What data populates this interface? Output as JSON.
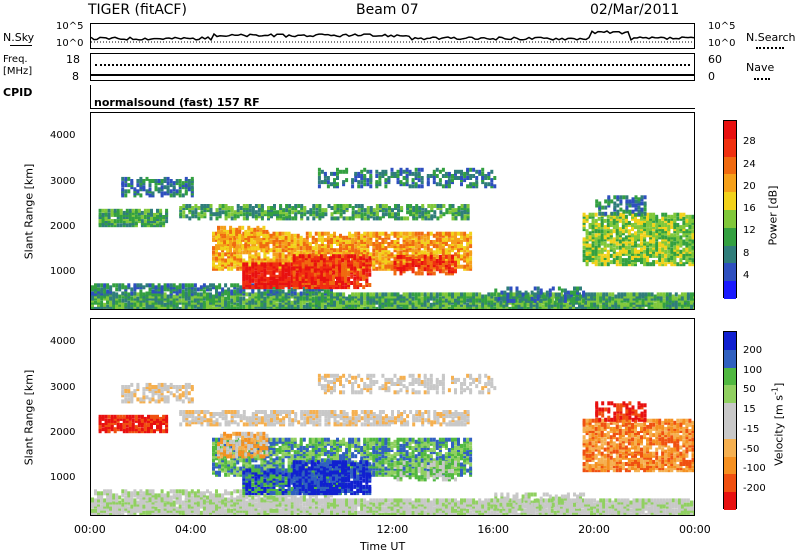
{
  "header": {
    "radar": "TIGER (fitACF)",
    "beam": "Beam 07",
    "date": "02/Mar/2011"
  },
  "summary": {
    "nsky_label": "N.Sky",
    "nsearch_label": "N.Search",
    "freq_label": "Freq.",
    "freq_unit": "[MHz]",
    "nave_label": "Nave",
    "cpid_label": "CPID",
    "cpid_text": "normalsound (fast) 157 RF",
    "noise_ticks_left": [
      "10^5",
      "10^0"
    ],
    "noise_ticks_right": [
      "10^5",
      "10^0"
    ],
    "freq_ticks": [
      "18",
      "8"
    ],
    "nave_ticks": [
      "60",
      "0"
    ]
  },
  "colors": {
    "power": [
      "#1a1aff",
      "#2e4fbf",
      "#2f7d7a",
      "#33a040",
      "#80c83a",
      "#f2d21b",
      "#f5a01a",
      "#f06a10",
      "#f03010",
      "#e81010"
    ],
    "velocity": [
      "#e81010",
      "#f05010",
      "#f59020",
      "#f5b050",
      "#c8c8c8",
      "#c8c8c8",
      "#90d060",
      "#50b840",
      "#3060c0",
      "#1020d0"
    ]
  },
  "chart_data": [
    {
      "type": "heatmap",
      "name": "Power",
      "ylabel": "Slant Range [km]",
      "xlabel": "Time UT",
      "yticks": [
        "4000",
        "3000",
        "2000",
        "1000"
      ],
      "colorbar_label": "Power [dB]",
      "colorbar_ticks": [
        "28",
        "24",
        "20",
        "16",
        "12",
        "8",
        "4"
      ],
      "ylim": [
        180,
        4500
      ],
      "xlim": [
        0,
        24
      ]
    },
    {
      "type": "heatmap",
      "name": "Velocity",
      "ylabel": "Slant Range [km]",
      "xlabel": "Time UT",
      "yticks": [
        "4000",
        "3000",
        "2000",
        "1000"
      ],
      "colorbar_label": "Velocity [m s",
      "colorbar_label_sup": "-1",
      "colorbar_label_end": "]",
      "colorbar_ticks": [
        "200",
        "100",
        "50",
        "15",
        "-15",
        "-50",
        "-100",
        "-200"
      ],
      "ylim": [
        180,
        4500
      ],
      "xlim": [
        0,
        24
      ]
    }
  ],
  "xaxis": {
    "ticks": [
      "00:00",
      "04:00",
      "08:00",
      "12:00",
      "16:00",
      "20:00",
      "00:00"
    ],
    "label": "Time UT"
  }
}
